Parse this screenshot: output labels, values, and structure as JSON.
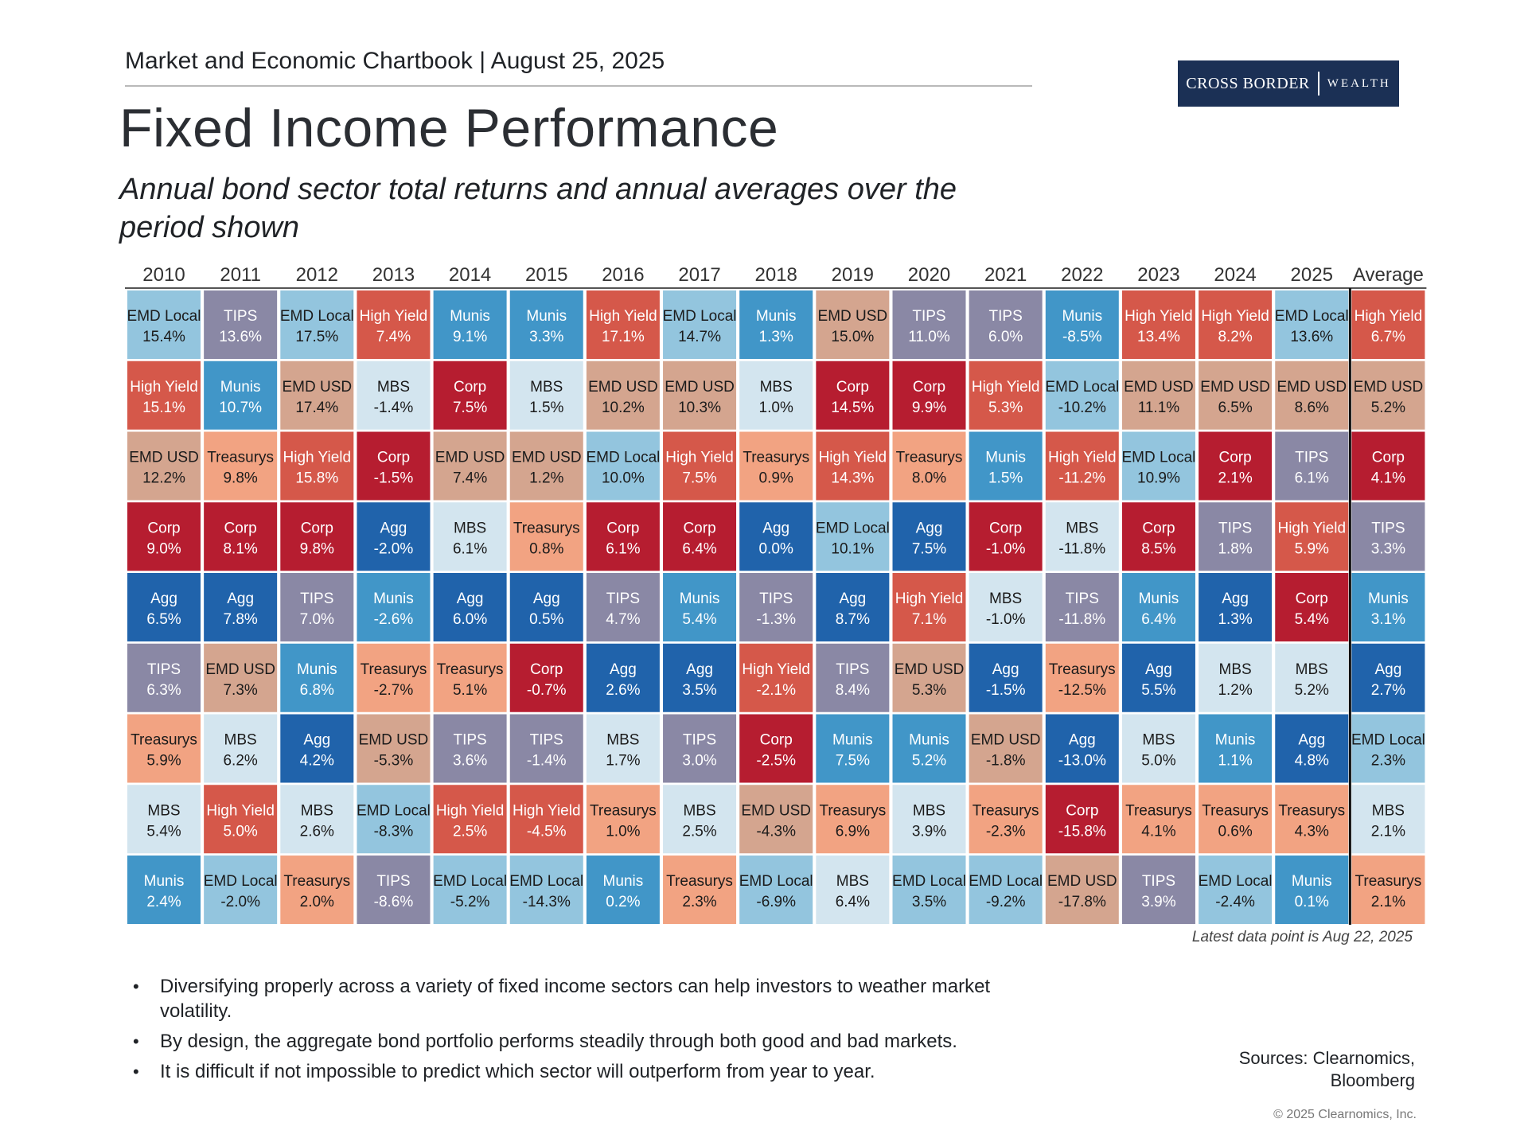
{
  "header": {
    "chartbook": "Market and Economic Chartbook | August 25, 2025",
    "logo_primary": "CROSS BORDER",
    "logo_secondary": "WEALTH"
  },
  "title": "Fixed Income Performance",
  "subtitle": "Annual bond sector total returns and annual averages over the period shown",
  "colors": {
    "EMD Local": "#93c5de",
    "TIPS": "#8a88a5",
    "High Yield": "#d5584a",
    "Munis": "#4196c8",
    "Corp": "#b61d30",
    "MBS": "#d3e5ef",
    "EMD USD": "#d4a58f",
    "Treasurys": "#f2a382",
    "Agg": "#2063ab"
  },
  "text_colors": {
    "EMD Local": "#1b1b1b",
    "TIPS": "#ffffff",
    "High Yield": "#ffffff",
    "Munis": "#ffffff",
    "Corp": "#ffffff",
    "MBS": "#1b1b1b",
    "EMD USD": "#1b1b1b",
    "Treasurys": "#1b1b1b",
    "Agg": "#ffffff"
  },
  "chart_data": {
    "type": "table",
    "title": "Annual bond sector total returns (quilt chart)",
    "columns": [
      "2010",
      "2011",
      "2012",
      "2013",
      "2014",
      "2015",
      "2016",
      "2017",
      "2018",
      "2019",
      "2020",
      "2021",
      "2022",
      "2023",
      "2024",
      "2025",
      "Average"
    ],
    "rankings": [
      [
        {
          "s": "EMD Local",
          "v": "15.4%"
        },
        {
          "s": "High Yield",
          "v": "15.1%"
        },
        {
          "s": "EMD USD",
          "v": "12.2%"
        },
        {
          "s": "Corp",
          "v": "9.0%"
        },
        {
          "s": "Agg",
          "v": "6.5%"
        },
        {
          "s": "TIPS",
          "v": "6.3%"
        },
        {
          "s": "Treasurys",
          "v": "5.9%"
        },
        {
          "s": "MBS",
          "v": "5.4%"
        },
        {
          "s": "Munis",
          "v": "2.4%"
        }
      ],
      [
        {
          "s": "TIPS",
          "v": "13.6%"
        },
        {
          "s": "Munis",
          "v": "10.7%"
        },
        {
          "s": "Treasurys",
          "v": "9.8%"
        },
        {
          "s": "Corp",
          "v": "8.1%"
        },
        {
          "s": "Agg",
          "v": "7.8%"
        },
        {
          "s": "EMD USD",
          "v": "7.3%"
        },
        {
          "s": "MBS",
          "v": "6.2%"
        },
        {
          "s": "High Yield",
          "v": "5.0%"
        },
        {
          "s": "EMD Local",
          "v": "-2.0%"
        }
      ],
      [
        {
          "s": "EMD Local",
          "v": "17.5%"
        },
        {
          "s": "EMD USD",
          "v": "17.4%"
        },
        {
          "s": "High Yield",
          "v": "15.8%"
        },
        {
          "s": "Corp",
          "v": "9.8%"
        },
        {
          "s": "TIPS",
          "v": "7.0%"
        },
        {
          "s": "Munis",
          "v": "6.8%"
        },
        {
          "s": "Agg",
          "v": "4.2%"
        },
        {
          "s": "MBS",
          "v": "2.6%"
        },
        {
          "s": "Treasurys",
          "v": "2.0%"
        }
      ],
      [
        {
          "s": "High Yield",
          "v": "7.4%"
        },
        {
          "s": "MBS",
          "v": "-1.4%"
        },
        {
          "s": "Corp",
          "v": "-1.5%"
        },
        {
          "s": "Agg",
          "v": "-2.0%"
        },
        {
          "s": "Munis",
          "v": "-2.6%"
        },
        {
          "s": "Treasurys",
          "v": "-2.7%"
        },
        {
          "s": "EMD USD",
          "v": "-5.3%"
        },
        {
          "s": "EMD Local",
          "v": "-8.3%"
        },
        {
          "s": "TIPS",
          "v": "-8.6%"
        }
      ],
      [
        {
          "s": "Munis",
          "v": "9.1%"
        },
        {
          "s": "Corp",
          "v": "7.5%"
        },
        {
          "s": "EMD USD",
          "v": "7.4%"
        },
        {
          "s": "MBS",
          "v": "6.1%"
        },
        {
          "s": "Agg",
          "v": "6.0%"
        },
        {
          "s": "Treasurys",
          "v": "5.1%"
        },
        {
          "s": "TIPS",
          "v": "3.6%"
        },
        {
          "s": "High Yield",
          "v": "2.5%"
        },
        {
          "s": "EMD Local",
          "v": "-5.2%"
        }
      ],
      [
        {
          "s": "Munis",
          "v": "3.3%"
        },
        {
          "s": "MBS",
          "v": "1.5%"
        },
        {
          "s": "EMD USD",
          "v": "1.2%"
        },
        {
          "s": "Treasurys",
          "v": "0.8%"
        },
        {
          "s": "Agg",
          "v": "0.5%"
        },
        {
          "s": "Corp",
          "v": "-0.7%"
        },
        {
          "s": "TIPS",
          "v": "-1.4%"
        },
        {
          "s": "High Yield",
          "v": "-4.5%"
        },
        {
          "s": "EMD Local",
          "v": "-14.3%"
        }
      ],
      [
        {
          "s": "High Yield",
          "v": "17.1%"
        },
        {
          "s": "EMD USD",
          "v": "10.2%"
        },
        {
          "s": "EMD Local",
          "v": "10.0%"
        },
        {
          "s": "Corp",
          "v": "6.1%"
        },
        {
          "s": "TIPS",
          "v": "4.7%"
        },
        {
          "s": "Agg",
          "v": "2.6%"
        },
        {
          "s": "MBS",
          "v": "1.7%"
        },
        {
          "s": "Treasurys",
          "v": "1.0%"
        },
        {
          "s": "Munis",
          "v": "0.2%"
        }
      ],
      [
        {
          "s": "EMD Local",
          "v": "14.7%"
        },
        {
          "s": "EMD USD",
          "v": "10.3%"
        },
        {
          "s": "High Yield",
          "v": "7.5%"
        },
        {
          "s": "Corp",
          "v": "6.4%"
        },
        {
          "s": "Munis",
          "v": "5.4%"
        },
        {
          "s": "Agg",
          "v": "3.5%"
        },
        {
          "s": "TIPS",
          "v": "3.0%"
        },
        {
          "s": "MBS",
          "v": "2.5%"
        },
        {
          "s": "Treasurys",
          "v": "2.3%"
        }
      ],
      [
        {
          "s": "Munis",
          "v": "1.3%"
        },
        {
          "s": "MBS",
          "v": "1.0%"
        },
        {
          "s": "Treasurys",
          "v": "0.9%"
        },
        {
          "s": "Agg",
          "v": "0.0%"
        },
        {
          "s": "TIPS",
          "v": "-1.3%"
        },
        {
          "s": "High Yield",
          "v": "-2.1%"
        },
        {
          "s": "Corp",
          "v": "-2.5%"
        },
        {
          "s": "EMD USD",
          "v": "-4.3%"
        },
        {
          "s": "EMD Local",
          "v": "-6.9%"
        }
      ],
      [
        {
          "s": "EMD USD",
          "v": "15.0%"
        },
        {
          "s": "Corp",
          "v": "14.5%"
        },
        {
          "s": "High Yield",
          "v": "14.3%"
        },
        {
          "s": "EMD Local",
          "v": "10.1%"
        },
        {
          "s": "Agg",
          "v": "8.7%"
        },
        {
          "s": "TIPS",
          "v": "8.4%"
        },
        {
          "s": "Munis",
          "v": "7.5%"
        },
        {
          "s": "Treasurys",
          "v": "6.9%"
        },
        {
          "s": "MBS",
          "v": "6.4%"
        }
      ],
      [
        {
          "s": "TIPS",
          "v": "11.0%"
        },
        {
          "s": "Corp",
          "v": "9.9%"
        },
        {
          "s": "Treasurys",
          "v": "8.0%"
        },
        {
          "s": "Agg",
          "v": "7.5%"
        },
        {
          "s": "High Yield",
          "v": "7.1%"
        },
        {
          "s": "EMD USD",
          "v": "5.3%"
        },
        {
          "s": "Munis",
          "v": "5.2%"
        },
        {
          "s": "MBS",
          "v": "3.9%"
        },
        {
          "s": "EMD Local",
          "v": "3.5%"
        }
      ],
      [
        {
          "s": "TIPS",
          "v": "6.0%"
        },
        {
          "s": "High Yield",
          "v": "5.3%"
        },
        {
          "s": "Munis",
          "v": "1.5%"
        },
        {
          "s": "Corp",
          "v": "-1.0%"
        },
        {
          "s": "MBS",
          "v": "-1.0%"
        },
        {
          "s": "Agg",
          "v": "-1.5%"
        },
        {
          "s": "EMD USD",
          "v": "-1.8%"
        },
        {
          "s": "Treasurys",
          "v": "-2.3%"
        },
        {
          "s": "EMD Local",
          "v": "-9.2%"
        }
      ],
      [
        {
          "s": "Munis",
          "v": "-8.5%"
        },
        {
          "s": "EMD Local",
          "v": "-10.2%"
        },
        {
          "s": "High Yield",
          "v": "-11.2%"
        },
        {
          "s": "MBS",
          "v": "-11.8%"
        },
        {
          "s": "TIPS",
          "v": "-11.8%"
        },
        {
          "s": "Treasurys",
          "v": "-12.5%"
        },
        {
          "s": "Agg",
          "v": "-13.0%"
        },
        {
          "s": "Corp",
          "v": "-15.8%"
        },
        {
          "s": "EMD USD",
          "v": "-17.8%"
        }
      ],
      [
        {
          "s": "High Yield",
          "v": "13.4%"
        },
        {
          "s": "EMD USD",
          "v": "11.1%"
        },
        {
          "s": "EMD Local",
          "v": "10.9%"
        },
        {
          "s": "Corp",
          "v": "8.5%"
        },
        {
          "s": "Munis",
          "v": "6.4%"
        },
        {
          "s": "Agg",
          "v": "5.5%"
        },
        {
          "s": "MBS",
          "v": "5.0%"
        },
        {
          "s": "Treasurys",
          "v": "4.1%"
        },
        {
          "s": "TIPS",
          "v": "3.9%"
        }
      ],
      [
        {
          "s": "High Yield",
          "v": "8.2%"
        },
        {
          "s": "EMD USD",
          "v": "6.5%"
        },
        {
          "s": "Corp",
          "v": "2.1%"
        },
        {
          "s": "TIPS",
          "v": "1.8%"
        },
        {
          "s": "Agg",
          "v": "1.3%"
        },
        {
          "s": "MBS",
          "v": "1.2%"
        },
        {
          "s": "Munis",
          "v": "1.1%"
        },
        {
          "s": "Treasurys",
          "v": "0.6%"
        },
        {
          "s": "EMD Local",
          "v": "-2.4%"
        }
      ],
      [
        {
          "s": "EMD Local",
          "v": "13.6%"
        },
        {
          "s": "EMD USD",
          "v": "8.6%"
        },
        {
          "s": "TIPS",
          "v": "6.1%"
        },
        {
          "s": "High Yield",
          "v": "5.9%"
        },
        {
          "s": "Corp",
          "v": "5.4%"
        },
        {
          "s": "MBS",
          "v": "5.2%"
        },
        {
          "s": "Agg",
          "v": "4.8%"
        },
        {
          "s": "Treasurys",
          "v": "4.3%"
        },
        {
          "s": "Munis",
          "v": "0.1%"
        }
      ],
      [
        {
          "s": "High Yield",
          "v": "6.7%"
        },
        {
          "s": "EMD USD",
          "v": "5.2%"
        },
        {
          "s": "Corp",
          "v": "4.1%"
        },
        {
          "s": "TIPS",
          "v": "3.3%"
        },
        {
          "s": "Munis",
          "v": "3.1%"
        },
        {
          "s": "Agg",
          "v": "2.7%"
        },
        {
          "s": "EMD Local",
          "v": "2.3%"
        },
        {
          "s": "MBS",
          "v": "2.1%"
        },
        {
          "s": "Treasurys",
          "v": "2.1%"
        }
      ]
    ],
    "note": "Latest data point is Aug 22, 2025"
  },
  "bullets": [
    "Diversifying properly across a variety of fixed income sectors can help investors to weather market volatility.",
    "By design, the aggregate bond portfolio performs steadily through both good and bad markets.",
    "It is difficult if not impossible to predict which sector will outperform from year to year."
  ],
  "sources": "Sources: Clearnomics, Bloomberg",
  "copyright": "© 2025 Clearnomics, Inc."
}
